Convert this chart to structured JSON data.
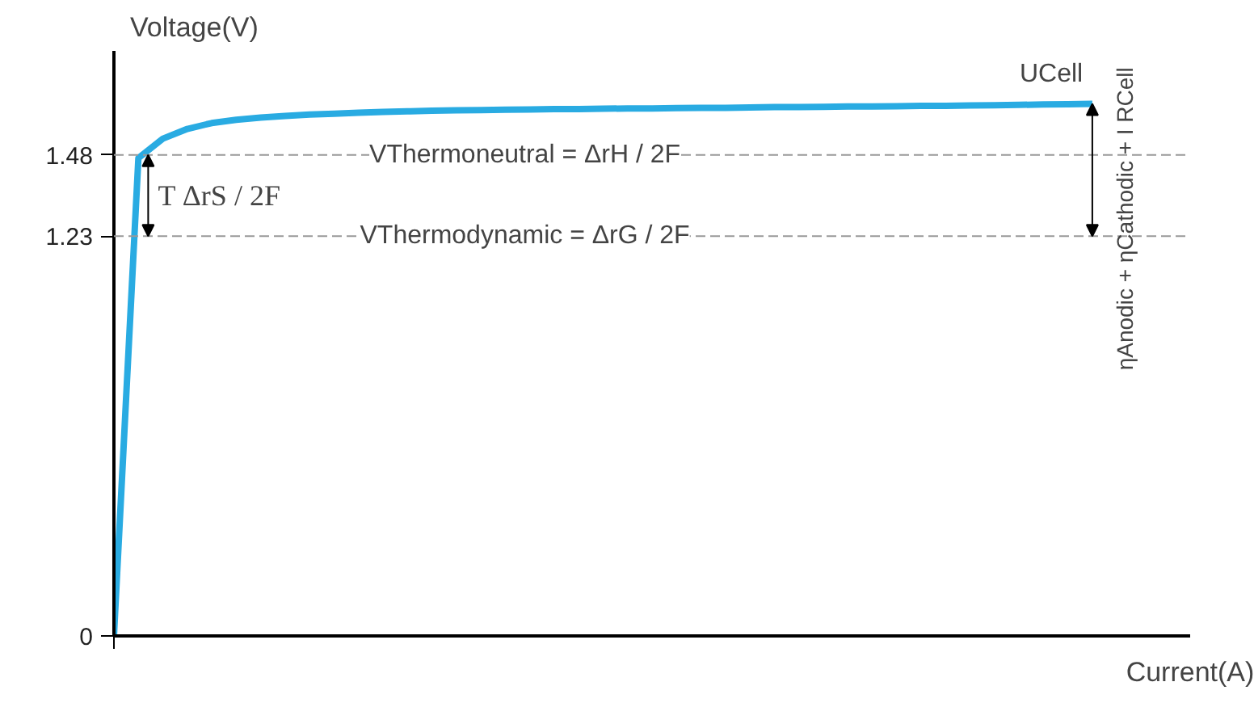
{
  "chart_data": {
    "type": "line",
    "xlabel": "Current(A)",
    "ylabel": "Voltage(V)",
    "categories": [
      null,
      null,
      null,
      null,
      null,
      null,
      null,
      null,
      null,
      null,
      null,
      null,
      null,
      null,
      null,
      null,
      null,
      null,
      null,
      null,
      null,
      null,
      null,
      null,
      null,
      null,
      null,
      null,
      null,
      null,
      null,
      null,
      null,
      null,
      null,
      null,
      null,
      null,
      null,
      null,
      null
    ],
    "series": [
      {
        "name": "UCell",
        "color": "#29abe2",
        "values": [
          0,
          1.47,
          1.53,
          1.56,
          1.578,
          1.588,
          1.595,
          1.6,
          1.604,
          1.607,
          1.61,
          1.612,
          1.614,
          1.616,
          1.617,
          1.618,
          1.619,
          1.62,
          1.621,
          1.621,
          1.622,
          1.623,
          1.623,
          1.624,
          1.625,
          1.625,
          1.626,
          1.627,
          1.627,
          1.628,
          1.629,
          1.629,
          1.63,
          1.631,
          1.631,
          1.632,
          1.633,
          1.634,
          1.635,
          1.636,
          1.637
        ]
      }
    ],
    "ylim": [
      0,
      1.8
    ],
    "yticks": [
      0,
      1.23,
      1.48
    ],
    "grid": false,
    "legend": false,
    "marker": "none",
    "line_style": "solid",
    "ref_lines": [
      {
        "axis": "y",
        "value": 1.48,
        "label": "VThermoneutral = ΔrH / 2F",
        "color": "#999999",
        "line_style": "dashed"
      },
      {
        "axis": "y",
        "value": 1.23,
        "label": "VThermodynamic = ΔrG / 2F",
        "color": "#999999",
        "line_style": "dashed"
      }
    ],
    "annotations": [
      "0",
      "T ΔrS / 2F",
      "ηAnodic + ηCathodic + I RCell"
    ]
  }
}
